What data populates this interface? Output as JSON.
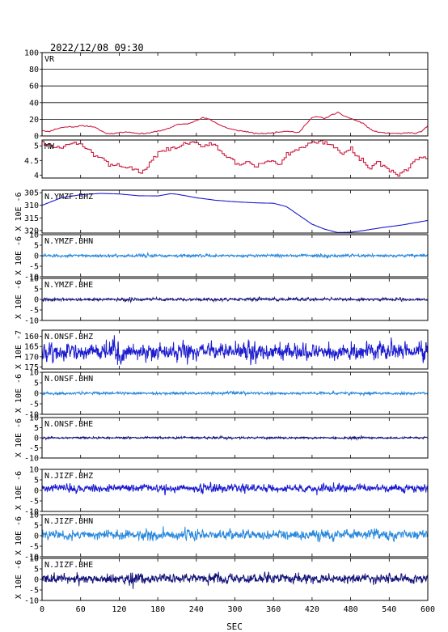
{
  "header": {
    "timestamp": "2022/12/08 09:30"
  },
  "chart_data": {
    "type": "line",
    "xlabel": "SEC",
    "xlim": [
      0,
      600
    ],
    "xticks": [
      0,
      60,
      120,
      180,
      240,
      300,
      360,
      420,
      480,
      540,
      600
    ],
    "ylabel": "X 10E -6",
    "panels": [
      {
        "label": "VR",
        "color": "#cc1f44",
        "kind": "vr",
        "ylim": [
          0,
          100
        ],
        "yticks": [
          0,
          20,
          40,
          60,
          80,
          100
        ],
        "grid": true,
        "x": [
          0,
          10,
          20,
          30,
          40,
          50,
          60,
          70,
          80,
          90,
          100,
          110,
          120,
          130,
          140,
          150,
          160,
          170,
          180,
          190,
          200,
          210,
          220,
          230,
          240,
          250,
          260,
          270,
          280,
          290,
          300,
          310,
          320,
          330,
          340,
          350,
          360,
          370,
          380,
          390,
          400,
          410,
          420,
          430,
          440,
          450,
          460,
          470,
          480,
          490,
          500,
          510,
          520,
          530,
          540,
          550,
          560,
          570,
          580,
          590,
          600
        ],
        "y": [
          7,
          5,
          8,
          10,
          11,
          11,
          12,
          12,
          11,
          7,
          3,
          3,
          4,
          5,
          4,
          3,
          3,
          4,
          6,
          7,
          10,
          14,
          14,
          15,
          19,
          22,
          20,
          16,
          12,
          9,
          7,
          6,
          5,
          3,
          3,
          3,
          4,
          5,
          6,
          5,
          4,
          14,
          22,
          23,
          21,
          25,
          28,
          24,
          21,
          18,
          15,
          8,
          5,
          4,
          3,
          3,
          3,
          4,
          3,
          5,
          12
        ]
      },
      {
        "label": "MW",
        "color": "#cc1f44",
        "kind": "mw",
        "ylim": [
          3.9,
          5.2
        ],
        "yticks": [
          4.0,
          4.5,
          5.0
        ],
        "x": [
          0,
          10,
          20,
          30,
          40,
          50,
          60,
          70,
          80,
          90,
          100,
          110,
          120,
          130,
          140,
          150,
          160,
          170,
          180,
          190,
          200,
          210,
          220,
          230,
          240,
          250,
          260,
          270,
          280,
          290,
          300,
          310,
          320,
          330,
          340,
          350,
          360,
          370,
          380,
          390,
          400,
          410,
          420,
          430,
          440,
          450,
          460,
          470,
          480,
          490,
          500,
          510,
          520,
          530,
          540,
          550,
          560,
          570,
          580,
          590,
          600
        ],
        "y": [
          5.1,
          5.05,
          4.9,
          4.95,
          5.05,
          5.1,
          5.0,
          4.95,
          4.7,
          4.6,
          4.4,
          4.3,
          4.35,
          4.3,
          4.2,
          4.1,
          4.15,
          4.5,
          4.75,
          4.85,
          4.9,
          4.95,
          5.05,
          5.1,
          5.05,
          5.0,
          5.1,
          5.0,
          4.75,
          4.6,
          4.4,
          4.3,
          4.45,
          4.3,
          4.35,
          4.5,
          4.45,
          4.35,
          4.7,
          4.8,
          4.9,
          5.05,
          5.1,
          5.15,
          5.1,
          5.1,
          4.8,
          4.75,
          4.9,
          4.6,
          4.5,
          4.2,
          4.45,
          4.3,
          4.15,
          4.0,
          4.05,
          4.3,
          4.5,
          4.6,
          4.65
        ]
      },
      {
        "label": "N.YMZF.BHZ",
        "color": "#1c1ccf",
        "kind": "smooth",
        "ylim": [
          -321,
          -304
        ],
        "yticks": [
          -305,
          -310,
          -315,
          -320
        ],
        "yticklabels": [
          "305",
          "310",
          "315",
          "320"
        ],
        "ylabel": "X 10E -6",
        "x": [
          0,
          30,
          60,
          90,
          120,
          150,
          180,
          200,
          210,
          240,
          270,
          300,
          330,
          360,
          380,
          400,
          420,
          440,
          460,
          480,
          500,
          530,
          560,
          600
        ],
        "y": [
          -310,
          -307,
          -305.8,
          -305.3,
          -305.5,
          -306.2,
          -306.3,
          -305.4,
          -305.6,
          -307,
          -308,
          -308.6,
          -309,
          -309.2,
          -310.5,
          -314,
          -317.5,
          -319.5,
          -320.8,
          -320.7,
          -320,
          -318.8,
          -317.8,
          -316
        ]
      },
      {
        "label": "N.YMZF.BHN",
        "color": "#2a89dd",
        "kind": "noise",
        "amp": 0.9,
        "ylim": [
          -10,
          10
        ],
        "yticks": [
          10,
          5,
          0,
          -5,
          -10
        ],
        "ylabel": "X 10E -6"
      },
      {
        "label": "N.YMZF.BHE",
        "color": "#14147a",
        "kind": "noise",
        "amp": 0.9,
        "ylim": [
          -10,
          10
        ],
        "yticks": [
          10,
          5,
          0,
          -5,
          -10
        ],
        "ylabel": "X 10E -6"
      },
      {
        "label": "N.ONSF.BHZ",
        "color": "#1c1ccf",
        "kind": "noise",
        "amp": 5.5,
        "offset": -167.5,
        "ylim": [
          -176,
          -157
        ],
        "yticks": [
          -160,
          -165,
          -170,
          -175
        ],
        "yticklabels": [
          "160",
          "165",
          "170",
          "175"
        ],
        "ylabel": "X 10E -7"
      },
      {
        "label": "N.ONSF.BHN",
        "color": "#2a89dd",
        "kind": "noise",
        "amp": 0.8,
        "ylim": [
          -10,
          10
        ],
        "yticks": [
          10,
          5,
          0,
          -5,
          -10
        ],
        "ylabel": "X 10E -6"
      },
      {
        "label": "N.ONSF.BHE",
        "color": "#14147a",
        "kind": "noise",
        "amp": 0.6,
        "ylim": [
          -10,
          10
        ],
        "yticks": [
          10,
          5,
          0,
          -5,
          -10
        ],
        "ylabel": "X 10E -6"
      },
      {
        "label": "N.JIZF.BHZ",
        "color": "#1c1ccf",
        "kind": "noise",
        "amp": 2.5,
        "offset": 1,
        "ylim": [
          -10,
          10
        ],
        "yticks": [
          10,
          5,
          0,
          -5,
          -10
        ],
        "ylabel": "X 10E -6"
      },
      {
        "label": "N.JIZF.BHN",
        "color": "#2a89dd",
        "kind": "noise",
        "amp": 3.0,
        "offset": 0.5,
        "ylim": [
          -10,
          10
        ],
        "yticks": [
          10,
          5,
          0,
          -5,
          -10
        ],
        "ylabel": "X 10E -6"
      },
      {
        "label": "N.JIZF.BHE",
        "color": "#14147a",
        "kind": "noise",
        "amp": 3.0,
        "offset": 0.3,
        "ylim": [
          -10,
          10
        ],
        "yticks": [
          10,
          5,
          0,
          -5,
          -10
        ],
        "ylabel": "X 10E -6"
      }
    ]
  }
}
